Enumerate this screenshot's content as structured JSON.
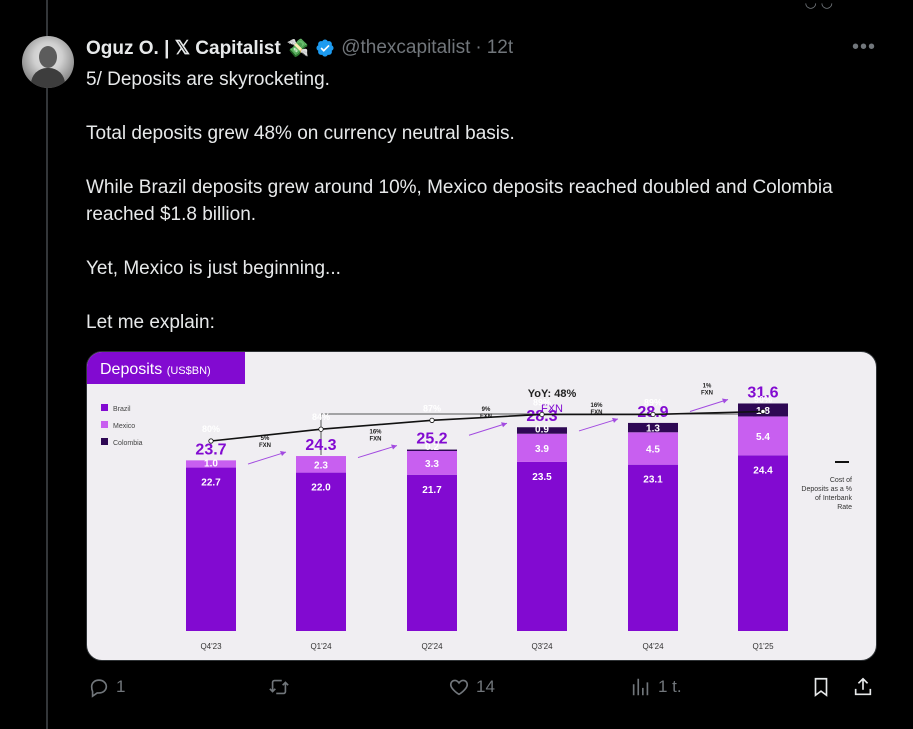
{
  "tweet": {
    "author_name": "Oguz O. | 𝕏 Capitalist",
    "author_emoji": "💸",
    "handle": "@thexcapitalist",
    "separator": "·",
    "time": "12t",
    "text": [
      "5/ Deposits are skyrocketing.",
      "",
      "Total deposits grew 48% on currency neutral basis.",
      "",
      "While Brazil deposits grew around 10%, Mexico deposits reached doubled and Colombia reached $1.8 billion.",
      "",
      "Yet, Mexico is just beginning...",
      "",
      "Let me explain:"
    ]
  },
  "actions": {
    "replies": "1",
    "retweets": "",
    "likes": "14",
    "views": "1 t."
  },
  "chart_data": {
    "type": "bar",
    "title": "Deposits",
    "title_unit": "(US$BN)",
    "categories": [
      "Q4'23",
      "Q1'24",
      "Q2'24",
      "Q3'24",
      "Q4'24",
      "Q1'25"
    ],
    "totals": [
      23.7,
      24.3,
      25.2,
      28.3,
      28.9,
      31.6
    ],
    "series": [
      {
        "name": "Brazil",
        "color": "#820ad1",
        "values": [
          22.7,
          22.0,
          21.7,
          23.5,
          23.1,
          24.4
        ]
      },
      {
        "name": "Mexico",
        "color": "#c85ff0",
        "values": [
          1.0,
          2.3,
          3.3,
          3.9,
          4.5,
          5.4
        ]
      },
      {
        "name": "Colombia",
        "color": "#2e0854",
        "values": [
          0.0,
          0.0,
          0.2,
          0.9,
          1.3,
          1.8
        ]
      }
    ],
    "series_labels": [
      [
        "22.7",
        "22.0",
        "21.7",
        "23.5",
        "23.1",
        "24.4"
      ],
      [
        "1.0",
        "2.3",
        "3.3",
        "3.9",
        "4.5",
        "5.4"
      ],
      [
        "",
        "",
        "0.2",
        "0.9",
        "1.3",
        "1.8"
      ]
    ],
    "cost_of_deposits": {
      "name": "Cost of Deposits as a % of Interbank Rate",
      "values": [
        80,
        84,
        87,
        89,
        89,
        90
      ],
      "labels": [
        "80%",
        "84%",
        "87%",
        "89%",
        "89%",
        "90%"
      ]
    },
    "growth_arrows": [
      {
        "pct": "5%",
        "label": "FXN"
      },
      {
        "pct": "16%",
        "label": "FXN"
      },
      {
        "pct": "9%",
        "label": "FXN"
      },
      {
        "pct": "16%",
        "label": "FXN"
      },
      {
        "pct": "1%",
        "label": "FXN"
      }
    ],
    "yoy_label": "YoY: 48%",
    "yoy_sub": "FXN",
    "legend_line_label": "Cost of Deposits as a % of Interbank Rate"
  }
}
